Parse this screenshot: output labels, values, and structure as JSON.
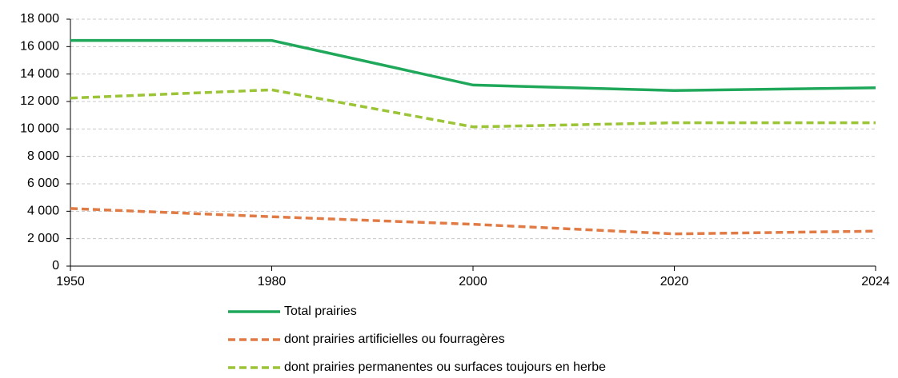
{
  "chart_data": {
    "type": "line",
    "categories": [
      "1950",
      "1980",
      "2000",
      "2020",
      "2024"
    ],
    "series": [
      {
        "name": "Total prairies",
        "color": "#1fa85a",
        "dash": false,
        "values": [
          16450,
          16450,
          13200,
          12800,
          13000
        ]
      },
      {
        "name": "dont prairies artificielles ou fourragères",
        "color": "#e07b45",
        "dash": true,
        "values": [
          4200,
          3600,
          3050,
          2350,
          2550
        ]
      },
      {
        "name": "dont prairies permanentes ou surfaces toujours en herbe",
        "color": "#9bc437",
        "dash": true,
        "values": [
          12250,
          12850,
          10150,
          10450,
          10450
        ]
      }
    ],
    "ylim": [
      0,
      18000
    ],
    "yticks": [
      0,
      {
        "value": 2000,
        "label": "2 000"
      },
      {
        "value": 4000,
        "label": "4 000"
      },
      {
        "value": 6000,
        "label": "6 000"
      },
      {
        "value": 8000,
        "label": "8 000"
      },
      {
        "value": 10000,
        "label": "10 000"
      },
      {
        "value": 12000,
        "label": "12 000"
      },
      {
        "value": 14000,
        "label": "14 000"
      },
      {
        "value": 16000,
        "label": "16 000"
      },
      {
        "value": 18000,
        "label": "18 000"
      }
    ],
    "grid": true,
    "legend": "bottom"
  }
}
